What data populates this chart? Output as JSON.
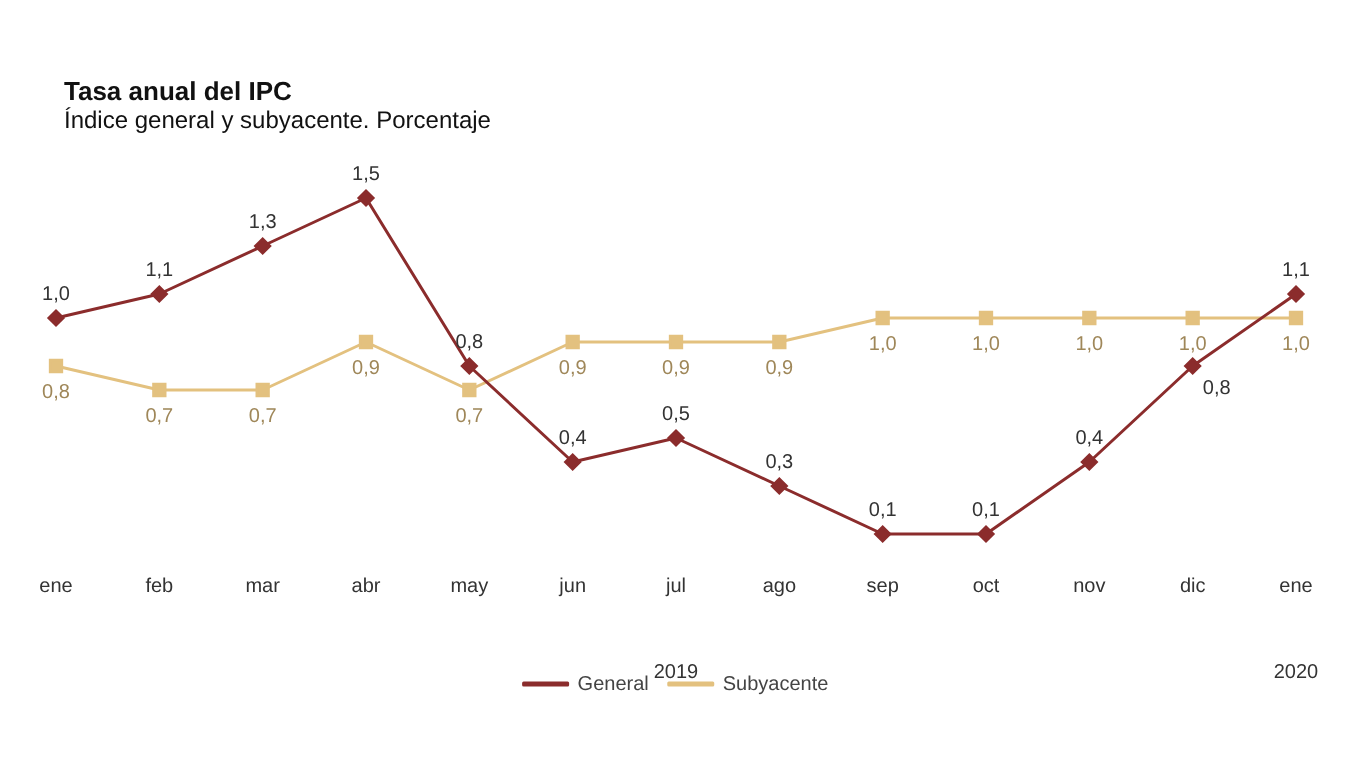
{
  "chart_data": {
    "type": "line",
    "title": "Tasa anual del IPC",
    "subtitle": "Índice general y subyacente. Porcentaje",
    "categories": [
      "ene",
      "feb",
      "mar",
      "abr",
      "may",
      "jun",
      "jul",
      "ago",
      "sep",
      "oct",
      "nov",
      "dic",
      "ene"
    ],
    "series": [
      {
        "name": "General",
        "color": "#8b2c2c",
        "marker": "diamond",
        "values": [
          1.0,
          1.1,
          1.3,
          1.5,
          0.8,
          0.4,
          0.5,
          0.3,
          0.1,
          0.1,
          0.4,
          0.8,
          1.1
        ],
        "value_labels": [
          "1,0",
          "1,1",
          "1,3",
          "1,5",
          "0,8",
          "0,4",
          "0,5",
          "0,3",
          "0,1",
          "0,1",
          "0,4",
          "0,8",
          "1,1"
        ]
      },
      {
        "name": "Subyacente",
        "color": "#e3c17f",
        "marker": "square",
        "values": [
          0.8,
          0.7,
          0.7,
          0.9,
          0.7,
          0.9,
          0.9,
          0.9,
          1.0,
          1.0,
          1.0,
          1.0,
          1.0
        ],
        "value_labels": [
          "0,8",
          "0,7",
          "0,7",
          "0,9",
          "0,7",
          "0,9",
          "0,9",
          "0,9",
          "1,0",
          "1,0",
          "1,0",
          "1,0",
          "1,0"
        ]
      }
    ],
    "annotations": [
      "2019",
      "2020"
    ],
    "legend": "bottom",
    "grid": false,
    "line_style": "solid"
  }
}
